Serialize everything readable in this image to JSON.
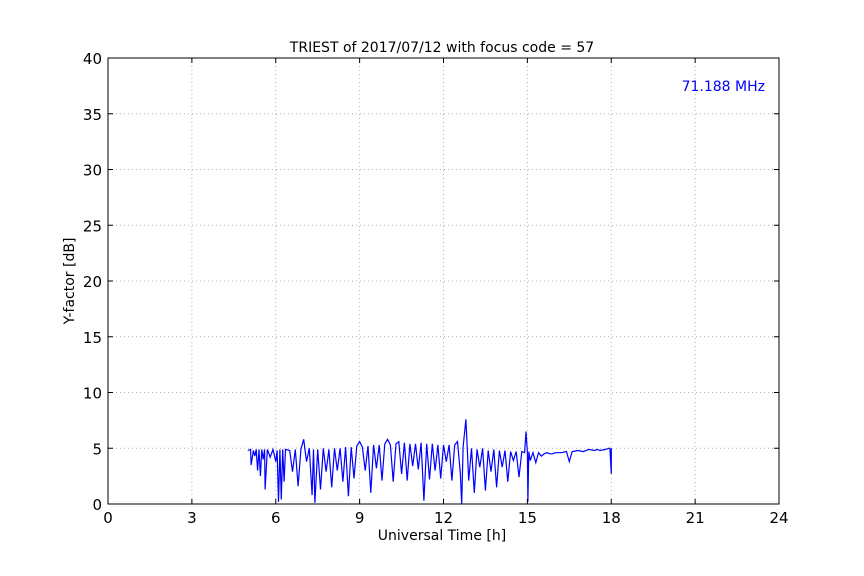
{
  "chart_data": {
    "type": "line",
    "title": "TRIEST of 2017/07/12 with focus code = 57",
    "xlabel": "Universal Time [h]",
    "ylabel": "Y-factor [dB]",
    "xlim": [
      0,
      24
    ],
    "ylim": [
      0,
      40
    ],
    "xticks": [
      0,
      3,
      6,
      9,
      12,
      15,
      18,
      21,
      24
    ],
    "yticks": [
      0,
      5,
      10,
      15,
      20,
      25,
      30,
      35,
      40
    ],
    "grid": true,
    "annotation": "71.188 MHz",
    "series_color": "#0000ff",
    "series": [
      {
        "values_x": [
          5.0,
          5.1,
          5.12,
          5.2,
          5.25,
          5.3,
          5.35,
          5.4,
          5.45,
          5.5,
          5.55,
          5.6,
          5.62,
          5.7,
          5.8,
          5.9,
          6.0,
          6.05,
          6.1,
          6.15,
          6.2,
          6.25,
          6.3,
          6.35,
          6.5,
          6.6,
          6.7,
          6.8,
          6.9,
          7.0,
          7.05,
          7.1,
          7.2,
          7.3,
          7.35,
          7.4,
          7.5,
          7.6,
          7.7,
          7.8,
          7.9,
          8.0,
          8.1,
          8.2,
          8.3,
          8.4,
          8.5,
          8.6,
          8.7,
          8.8,
          8.9,
          9.0,
          9.1,
          9.2,
          9.3,
          9.4,
          9.5,
          9.6,
          9.7,
          9.8,
          9.9,
          10.0,
          10.1,
          10.2,
          10.3,
          10.4,
          10.5,
          10.6,
          10.7,
          10.8,
          10.9,
          11.0,
          11.1,
          11.2,
          11.3,
          11.4,
          11.5,
          11.6,
          11.7,
          11.8,
          11.9,
          12.0,
          12.1,
          12.2,
          12.3,
          12.4,
          12.5,
          12.6,
          12.65,
          12.7,
          12.8,
          12.85,
          12.9,
          13.0,
          13.1,
          13.2,
          13.3,
          13.4,
          13.5,
          13.6,
          13.7,
          13.8,
          13.9,
          14.0,
          14.1,
          14.2,
          14.3,
          14.4,
          14.5,
          14.6,
          14.7,
          14.8,
          14.9,
          14.95,
          15.0,
          15.02,
          15.05,
          15.1,
          15.2,
          15.3,
          15.4,
          15.5,
          15.6,
          15.7,
          15.8,
          15.9,
          16.0,
          16.2,
          16.4,
          16.5,
          16.6,
          16.8,
          17.0,
          17.2,
          17.4,
          17.5,
          17.6,
          17.8,
          17.9,
          17.95,
          18.0,
          18.0
        ],
        "values_y": [
          4.8,
          4.9,
          3.5,
          4.8,
          4.3,
          4.9,
          3.0,
          4.9,
          2.5,
          4.9,
          4.0,
          4.9,
          1.3,
          4.9,
          4.2,
          4.9,
          3.8,
          4.8,
          0.2,
          4.9,
          0.4,
          4.9,
          2.0,
          4.9,
          4.8,
          2.9,
          4.9,
          1.6,
          4.9,
          5.8,
          4.8,
          3.8,
          5.0,
          0.8,
          4.9,
          0.1,
          4.9,
          1.3,
          5.0,
          2.9,
          4.9,
          1.5,
          5.0,
          3.0,
          5.0,
          2.0,
          5.1,
          0.7,
          5.1,
          2.3,
          5.2,
          5.6,
          5.1,
          3.0,
          5.2,
          1.0,
          5.3,
          3.2,
          5.3,
          2.1,
          5.4,
          5.8,
          5.3,
          2.0,
          5.4,
          5.6,
          2.7,
          5.5,
          2.1,
          5.4,
          3.4,
          5.4,
          3.1,
          5.5,
          0.3,
          5.4,
          2.2,
          5.4,
          3.0,
          5.3,
          2.3,
          5.3,
          3.8,
          5.3,
          2.1,
          5.3,
          5.6,
          2.8,
          0.0,
          5.1,
          7.6,
          4.9,
          2.1,
          5.0,
          1.0,
          4.9,
          3.3,
          5.0,
          1.2,
          4.8,
          2.9,
          4.9,
          1.5,
          4.8,
          3.3,
          4.8,
          2.0,
          4.7,
          3.9,
          4.7,
          2.4,
          4.7,
          4.6,
          6.5,
          4.6,
          0.2,
          4.7,
          3.9,
          4.6,
          3.7,
          4.6,
          4.3,
          4.5,
          4.6,
          4.5,
          4.5,
          4.6,
          4.6,
          4.7,
          3.8,
          4.7,
          4.8,
          4.7,
          4.9,
          4.8,
          4.9,
          4.8,
          4.9,
          5.0,
          5.0,
          2.7,
          5.0
        ]
      }
    ]
  }
}
